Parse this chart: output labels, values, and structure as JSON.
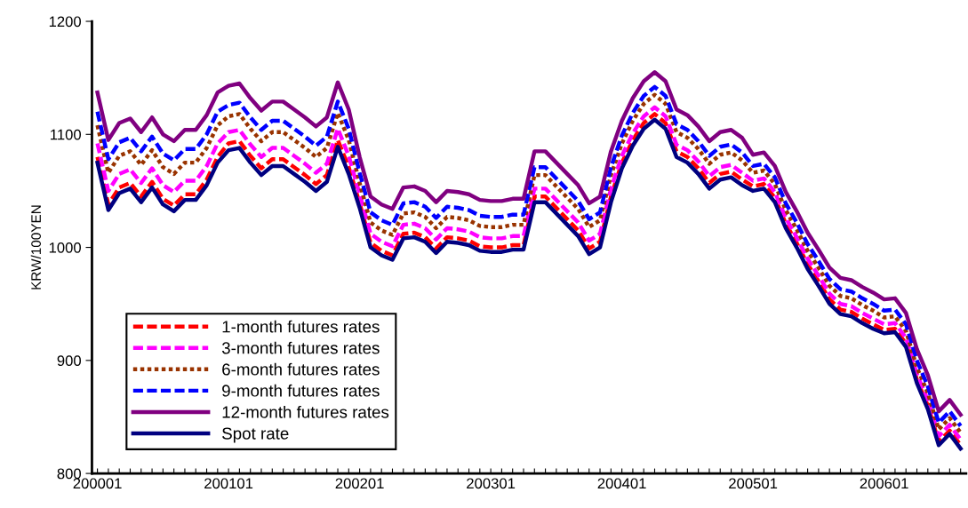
{
  "chart_data": {
    "type": "line",
    "ylabel": "KRW/100YEN",
    "categories": [
      "200001",
      null,
      null,
      null,
      null,
      null,
      null,
      null,
      null,
      null,
      null,
      null,
      "200101",
      null,
      null,
      null,
      null,
      null,
      null,
      null,
      null,
      null,
      null,
      null,
      "200201",
      null,
      null,
      null,
      null,
      null,
      null,
      null,
      null,
      null,
      null,
      null,
      "200301",
      null,
      null,
      null,
      null,
      null,
      null,
      null,
      null,
      null,
      null,
      null,
      "200401",
      null,
      null,
      null,
      null,
      null,
      null,
      null,
      null,
      null,
      null,
      null,
      "200501",
      null,
      null,
      null,
      null,
      null,
      null,
      null,
      null,
      null,
      null,
      null,
      "200601",
      null,
      null,
      null,
      null,
      null,
      null,
      null
    ],
    "ylim": [
      800,
      1200
    ],
    "yticks": [
      800,
      900,
      1000,
      1100,
      1200
    ],
    "grid": false,
    "legend": "bottom left",
    "marker": "none",
    "series": [
      {
        "name": "1-month futures rates",
        "color": "#ff0000",
        "line_style": "dashed",
        "values": [
          1080,
          1038,
          1053,
          1057,
          1045,
          1058,
          1043,
          1037,
          1047,
          1047,
          1060,
          1080,
          1092,
          1094,
          1081,
          1070,
          1078,
          1078,
          1071,
          1064,
          1056,
          1064,
          1095,
          1071,
          1039,
          1004,
          997,
          993,
          1012,
          1013,
          1009,
          999,
          1009,
          1008,
          1006,
          1001,
          1000,
          1000,
          1002,
          1002,
          1045,
          1045,
          1035,
          1025,
          1015,
          999,
          1005,
          1045,
          1075,
          1095,
          1110,
          1118,
          1110,
          1085,
          1080,
          1070,
          1057,
          1065,
          1067,
          1060,
          1054,
          1056,
          1044,
          1021,
          1004,
          985,
          970,
          954,
          945,
          943,
          937,
          932,
          927,
          928,
          915,
          883,
          860,
          828,
          838,
          825
        ]
      },
      {
        "name": "3-month futures rates",
        "color": "#ff00ff",
        "line_style": "dashed",
        "values": [
          1092,
          1050,
          1065,
          1069,
          1057,
          1070,
          1055,
          1049,
          1059,
          1059,
          1072,
          1092,
          1102,
          1104,
          1091,
          1080,
          1088,
          1088,
          1081,
          1074,
          1066,
          1074,
          1105,
          1081,
          1047,
          1012,
          1005,
          1001,
          1020,
          1021,
          1017,
          1007,
          1017,
          1016,
          1014,
          1009,
          1008,
          1008,
          1010,
          1010,
          1052,
          1052,
          1042,
          1032,
          1022,
          1006,
          1012,
          1052,
          1081,
          1101,
          1116,
          1124,
          1116,
          1091,
          1086,
          1076,
          1063,
          1071,
          1073,
          1066,
          1059,
          1061,
          1049,
          1026,
          1009,
          990,
          975,
          959,
          950,
          948,
          942,
          937,
          932,
          933,
          920,
          888,
          865,
          833,
          843,
          830
        ]
      },
      {
        "name": "6-month futures rates",
        "color": "#993300",
        "line_style": "dotted",
        "values": [
          1108,
          1066,
          1081,
          1085,
          1073,
          1086,
          1071,
          1065,
          1075,
          1075,
          1088,
          1108,
          1116,
          1118,
          1105,
          1094,
          1102,
          1102,
          1095,
          1088,
          1080,
          1088,
          1119,
          1095,
          1057,
          1022,
          1015,
          1011,
          1030,
          1031,
          1027,
          1017,
          1027,
          1026,
          1024,
          1019,
          1018,
          1018,
          1020,
          1020,
          1064,
          1064,
          1054,
          1044,
          1034,
          1018,
          1024,
          1064,
          1092,
          1112,
          1127,
          1135,
          1127,
          1102,
          1097,
          1087,
          1074,
          1082,
          1084,
          1077,
          1066,
          1068,
          1056,
          1033,
          1016,
          997,
          982,
          966,
          957,
          955,
          949,
          944,
          938,
          939,
          926,
          894,
          871,
          839,
          849,
          836
        ]
      },
      {
        "name": "9-month futures rates",
        "color": "#0000ff",
        "line_style": "dashed",
        "values": [
          1120,
          1078,
          1093,
          1097,
          1085,
          1098,
          1083,
          1077,
          1087,
          1087,
          1100,
          1120,
          1126,
          1128,
          1115,
          1104,
          1112,
          1112,
          1105,
          1098,
          1090,
          1098,
          1129,
          1105,
          1066,
          1031,
          1024,
          1020,
          1039,
          1040,
          1036,
          1026,
          1036,
          1035,
          1033,
          1028,
          1027,
          1027,
          1029,
          1029,
          1071,
          1071,
          1061,
          1051,
          1041,
          1025,
          1031,
          1071,
          1099,
          1119,
          1134,
          1142,
          1134,
          1109,
          1104,
          1094,
          1081,
          1089,
          1091,
          1084,
          1072,
          1074,
          1062,
          1039,
          1022,
          1003,
          988,
          972,
          963,
          961,
          955,
          950,
          944,
          945,
          932,
          900,
          877,
          845,
          855,
          842
        ]
      },
      {
        "name": "12-month futures rates",
        "color": "#800080",
        "line_style": "solid",
        "values": [
          1137,
          1095,
          1110,
          1114,
          1102,
          1115,
          1100,
          1094,
          1104,
          1104,
          1117,
          1137,
          1143,
          1145,
          1132,
          1121,
          1129,
          1129,
          1122,
          1115,
          1107,
          1115,
          1146,
          1122,
          1080,
          1045,
          1038,
          1034,
          1053,
          1054,
          1050,
          1040,
          1050,
          1049,
          1047,
          1042,
          1041,
          1041,
          1043,
          1043,
          1085,
          1085,
          1075,
          1065,
          1055,
          1039,
          1045,
          1085,
          1112,
          1132,
          1147,
          1155,
          1147,
          1122,
          1117,
          1107,
          1094,
          1102,
          1104,
          1097,
          1082,
          1084,
          1072,
          1049,
          1032,
          1013,
          998,
          982,
          973,
          971,
          965,
          960,
          954,
          955,
          942,
          910,
          887,
          855,
          865,
          852
        ]
      },
      {
        "name": "Spot rate",
        "color": "#000080",
        "line_style": "solid",
        "values": [
          1075,
          1033,
          1048,
          1052,
          1040,
          1053,
          1038,
          1032,
          1042,
          1042,
          1055,
          1075,
          1086,
          1088,
          1075,
          1064,
          1072,
          1072,
          1065,
          1058,
          1050,
          1058,
          1089,
          1065,
          1035,
          1000,
          993,
          989,
          1008,
          1009,
          1005,
          995,
          1005,
          1004,
          1002,
          997,
          996,
          996,
          998,
          998,
          1040,
          1040,
          1030,
          1020,
          1010,
          994,
          1000,
          1040,
          1070,
          1090,
          1105,
          1113,
          1105,
          1080,
          1075,
          1065,
          1052,
          1060,
          1062,
          1055,
          1050,
          1052,
          1040,
          1017,
          1000,
          981,
          966,
          950,
          941,
          939,
          933,
          928,
          924,
          925,
          912,
          880,
          857,
          825,
          835,
          822
        ]
      }
    ]
  }
}
